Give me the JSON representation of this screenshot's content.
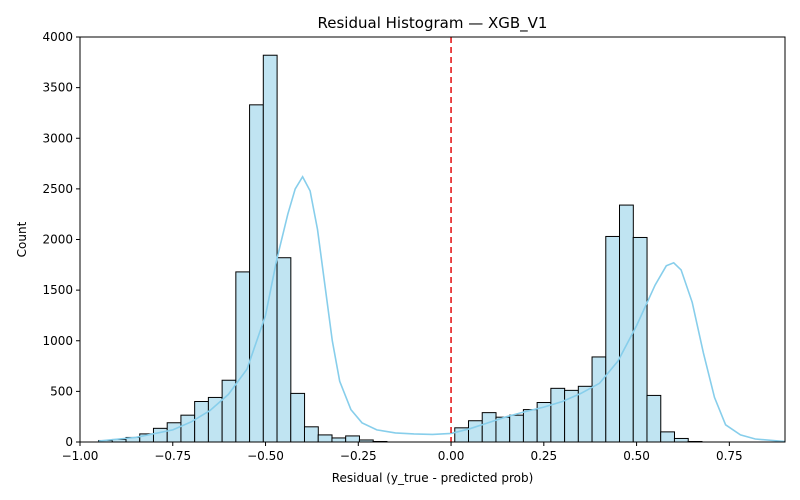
{
  "chart_data": {
    "type": "histogram",
    "title": "Residual Histogram — XGB_V1",
    "xlabel": "Residual (y_true - predicted prob)",
    "ylabel": "Count",
    "xlim": [
      -1.0,
      0.9
    ],
    "ylim": [
      0,
      4000
    ],
    "xticks": [
      -1.0,
      -0.75,
      -0.5,
      -0.25,
      0.0,
      0.25,
      0.5,
      0.75
    ],
    "xtick_labels": [
      "−1.00",
      "−0.75",
      "−0.50",
      "−0.25",
      "0.00",
      "0.25",
      "0.50",
      "0.75"
    ],
    "yticks": [
      0,
      500,
      1000,
      1500,
      2000,
      2500,
      3000,
      3500,
      4000
    ],
    "ytick_labels": [
      "0",
      "500",
      "1000",
      "1500",
      "2000",
      "2500",
      "3000",
      "3500",
      "4000"
    ],
    "grid": false,
    "bin_width": 0.0372,
    "bins": [
      {
        "x0": -0.95,
        "count": 15
      },
      {
        "x0": -0.913,
        "count": 25
      },
      {
        "x0": -0.876,
        "count": 45
      },
      {
        "x0": -0.839,
        "count": 80
      },
      {
        "x0": -0.802,
        "count": 135
      },
      {
        "x0": -0.765,
        "count": 190
      },
      {
        "x0": -0.728,
        "count": 265
      },
      {
        "x0": -0.691,
        "count": 400
      },
      {
        "x0": -0.654,
        "count": 440
      },
      {
        "x0": -0.617,
        "count": 610
      },
      {
        "x0": -0.58,
        "count": 1680
      },
      {
        "x0": -0.543,
        "count": 3330
      },
      {
        "x0": -0.506,
        "count": 3820
      },
      {
        "x0": -0.469,
        "count": 1820
      },
      {
        "x0": -0.432,
        "count": 480
      },
      {
        "x0": -0.395,
        "count": 150
      },
      {
        "x0": -0.358,
        "count": 70
      },
      {
        "x0": -0.321,
        "count": 40
      },
      {
        "x0": -0.284,
        "count": 60
      },
      {
        "x0": -0.247,
        "count": 20
      },
      {
        "x0": -0.21,
        "count": 5
      },
      {
        "x0": 0.01,
        "count": 140
      },
      {
        "x0": 0.047,
        "count": 210
      },
      {
        "x0": 0.084,
        "count": 290
      },
      {
        "x0": 0.121,
        "count": 245
      },
      {
        "x0": 0.158,
        "count": 265
      },
      {
        "x0": 0.195,
        "count": 320
      },
      {
        "x0": 0.232,
        "count": 390
      },
      {
        "x0": 0.269,
        "count": 530
      },
      {
        "x0": 0.306,
        "count": 510
      },
      {
        "x0": 0.343,
        "count": 550
      },
      {
        "x0": 0.38,
        "count": 840
      },
      {
        "x0": 0.417,
        "count": 2030
      },
      {
        "x0": 0.454,
        "count": 2340
      },
      {
        "x0": 0.491,
        "count": 2020
      },
      {
        "x0": 0.528,
        "count": 460
      },
      {
        "x0": 0.565,
        "count": 100
      },
      {
        "x0": 0.602,
        "count": 35
      },
      {
        "x0": 0.639,
        "count": 5
      }
    ],
    "kde": [
      [
        -0.95,
        10
      ],
      [
        -0.85,
        45
      ],
      [
        -0.75,
        120
      ],
      [
        -0.7,
        200
      ],
      [
        -0.65,
        310
      ],
      [
        -0.6,
        470
      ],
      [
        -0.55,
        720
      ],
      [
        -0.5,
        1250
      ],
      [
        -0.47,
        1800
      ],
      [
        -0.44,
        2250
      ],
      [
        -0.42,
        2500
      ],
      [
        -0.4,
        2620
      ],
      [
        -0.38,
        2480
      ],
      [
        -0.36,
        2100
      ],
      [
        -0.34,
        1550
      ],
      [
        -0.32,
        1000
      ],
      [
        -0.3,
        600
      ],
      [
        -0.27,
        320
      ],
      [
        -0.24,
        190
      ],
      [
        -0.2,
        120
      ],
      [
        -0.15,
        90
      ],
      [
        -0.1,
        80
      ],
      [
        -0.05,
        75
      ],
      [
        0.0,
        85
      ],
      [
        0.05,
        130
      ],
      [
        0.1,
        190
      ],
      [
        0.15,
        250
      ],
      [
        0.2,
        300
      ],
      [
        0.25,
        345
      ],
      [
        0.3,
        400
      ],
      [
        0.35,
        480
      ],
      [
        0.4,
        580
      ],
      [
        0.45,
        800
      ],
      [
        0.5,
        1150
      ],
      [
        0.55,
        1550
      ],
      [
        0.58,
        1740
      ],
      [
        0.6,
        1770
      ],
      [
        0.62,
        1700
      ],
      [
        0.65,
        1380
      ],
      [
        0.68,
        880
      ],
      [
        0.71,
        440
      ],
      [
        0.74,
        170
      ],
      [
        0.78,
        70
      ],
      [
        0.82,
        30
      ],
      [
        0.9,
        5
      ]
    ],
    "vline": {
      "x": 0.0,
      "color": "#e41a1c",
      "style": "dashed"
    },
    "colors": {
      "bar_fill": "#c0e4f2",
      "bar_edge": "#000000",
      "kde_line": "#87ceeb"
    }
  }
}
